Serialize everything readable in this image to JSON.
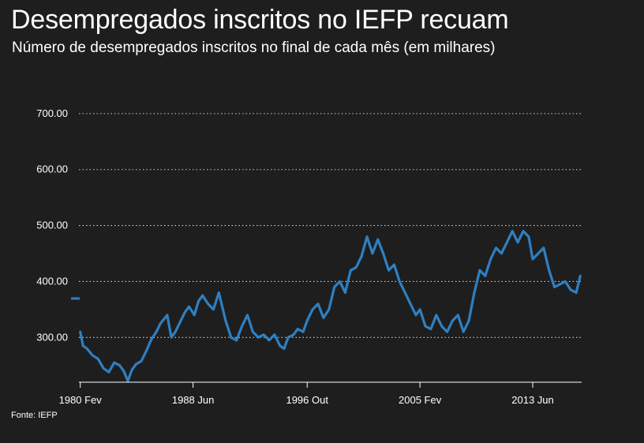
{
  "header": {
    "title": "Desempregados inscritos no IEFP recuam",
    "subtitle": "Número de desempregados inscritos no final de cada mês (em milhares)"
  },
  "footer": {
    "source": "Fonte: IEFP"
  },
  "colors": {
    "background": "#1e1e1e",
    "line": "#2f7fc1",
    "grid": "#d0d0d0",
    "text": "#ffffff"
  },
  "chart_data": {
    "type": "line",
    "title": "Desempregados inscritos no IEFP recuam",
    "subtitle": "Número de desempregados inscritos no final de cada mês (em milhares)",
    "ylim": [
      220,
      745
    ],
    "yticks": [
      300,
      400,
      500,
      600,
      700
    ],
    "ytick_labels": [
      "300.00",
      "400.00",
      "500.00",
      "600.00",
      "700.00"
    ],
    "xlim": [
      1980.0,
      2017.0
    ],
    "xticks": [
      1980.1,
      1988.4,
      1996.8,
      2005.1,
      2013.4
    ],
    "xtick_labels": [
      "1980 Fev",
      "1988 Jun",
      "1996 Out",
      "2005 Fev",
      "2013 Jun"
    ],
    "grid": "horizontal dotted",
    "series": [
      {
        "x": [
          1980.1,
          1980.3,
          1980.6,
          1981.0,
          1981.4,
          1981.8,
          1982.2,
          1982.6,
          1983.0,
          1983.3,
          1983.6,
          1983.9,
          1984.2,
          1984.6,
          1985.0,
          1985.3,
          1985.7,
          1986.0,
          1986.5,
          1986.8,
          1987.1,
          1987.5,
          1987.8,
          1988.1,
          1988.5,
          1988.8,
          1989.1,
          1989.5,
          1989.9,
          1990.3,
          1990.8,
          1991.2,
          1991.6,
          1992.0,
          1992.4,
          1992.8,
          1993.2,
          1993.6,
          1994.0,
          1994.4,
          1994.8,
          1995.1,
          1995.4,
          1995.8,
          1996.1,
          1996.5,
          1996.8,
          1997.2,
          1997.6,
          1998.0,
          1998.4,
          1998.8,
          1999.2,
          1999.6,
          2000.0,
          2000.4,
          2000.8,
          2001.2,
          2001.6,
          2002.0,
          2002.4,
          2002.8,
          2003.2,
          2003.6,
          2004.0,
          2004.4,
          2004.8,
          2005.1,
          2005.5,
          2005.9,
          2006.3,
          2006.7,
          2007.1,
          2007.5,
          2007.9,
          2008.3,
          2008.7,
          2009.1,
          2009.5,
          2009.9,
          2010.3,
          2010.7,
          2011.1,
          2011.5,
          2011.9,
          2012.3,
          2012.7,
          2013.1,
          2013.4,
          2013.8,
          2014.2,
          2014.6,
          2015.0,
          2015.4,
          2015.8,
          2016.2,
          2016.6,
          2016.9
        ],
        "y": [
          310,
          285,
          280,
          268,
          262,
          245,
          238,
          255,
          250,
          240,
          222,
          242,
          252,
          258,
          278,
          295,
          310,
          325,
          340,
          300,
          310,
          330,
          345,
          355,
          340,
          365,
          375,
          360,
          350,
          380,
          330,
          300,
          295,
          320,
          340,
          310,
          300,
          305,
          295,
          305,
          285,
          280,
          300,
          305,
          315,
          310,
          330,
          350,
          360,
          335,
          350,
          390,
          400,
          380,
          420,
          425,
          445,
          480,
          450,
          475,
          450,
          420,
          430,
          400,
          380,
          360,
          340,
          350,
          320,
          315,
          340,
          320,
          310,
          330,
          340,
          310,
          330,
          380,
          420,
          410,
          440,
          460,
          450,
          470,
          490,
          470,
          490,
          480,
          440,
          450,
          460,
          420,
          390,
          395,
          400,
          385,
          380,
          410
        ],
        "note": "values estimated from the plotted line"
      }
    ]
  }
}
